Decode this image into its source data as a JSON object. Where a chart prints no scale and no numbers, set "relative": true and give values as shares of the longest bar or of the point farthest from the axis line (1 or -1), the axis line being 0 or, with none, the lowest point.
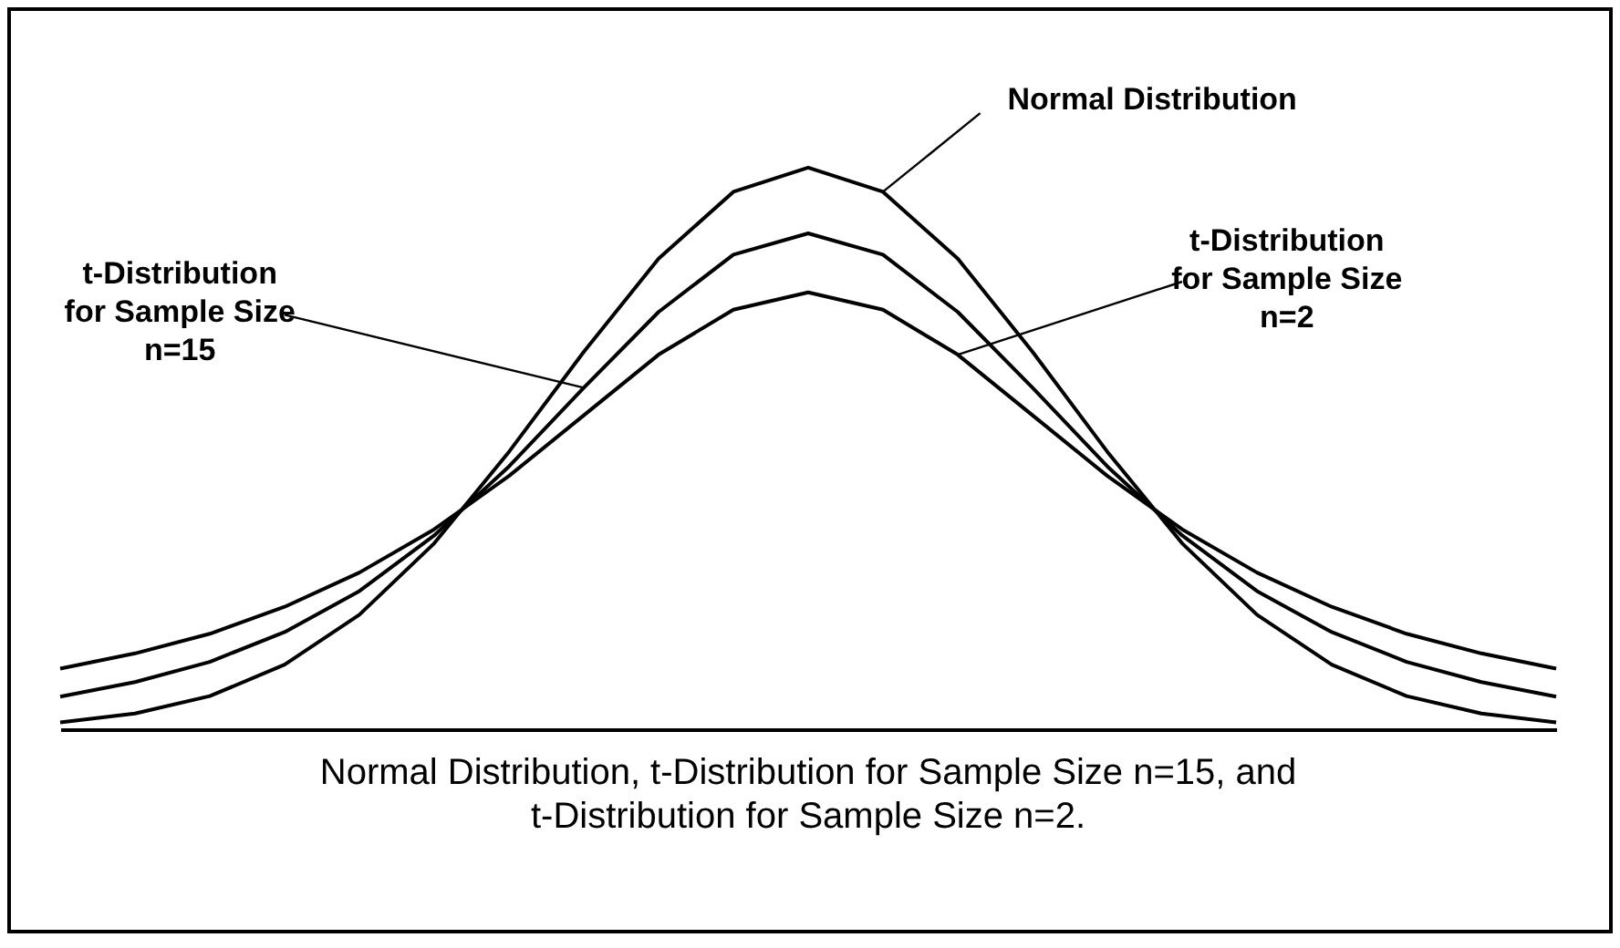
{
  "chart_data": {
    "type": "line",
    "relative": true,
    "marker": "none",
    "line_style": "solid",
    "categories": [
      null,
      null,
      null,
      null,
      null,
      null,
      null,
      null,
      null,
      null,
      null,
      null,
      null,
      null,
      null,
      null,
      null,
      null,
      null,
      null,
      null
    ],
    "series": [
      {
        "color": "#000000",
        "values": [
          0.012,
          0.028,
          0.059,
          0.115,
          0.204,
          0.331,
          0.494,
          0.672,
          0.838,
          0.957,
          1,
          0.957,
          0.838,
          0.672,
          0.494,
          0.331,
          0.204,
          0.115,
          0.059,
          0.028,
          0.012
        ]
      },
      {
        "color": "#000000",
        "values": [
          0.058,
          0.084,
          0.12,
          0.173,
          0.246,
          0.345,
          0.468,
          0.608,
          0.743,
          0.845,
          0.883,
          0.845,
          0.743,
          0.608,
          0.468,
          0.345,
          0.246,
          0.173,
          0.12,
          0.084,
          0.058
        ]
      },
      {
        "color": "#000000",
        "values": [
          0.108,
          0.135,
          0.17,
          0.218,
          0.279,
          0.356,
          0.451,
          0.559,
          0.667,
          0.747,
          0.778,
          0.747,
          0.667,
          0.559,
          0.451,
          0.356,
          0.279,
          0.218,
          0.17,
          0.135,
          0.108
        ]
      }
    ],
    "annotations": [
      "Normal Distribution",
      "t-Distribution\nfor Sample Size\nn=15",
      "t-Distribution\nfor Sample Size\nn=2",
      "Normal Distribution, t-Distribution for Sample Size n=15, and t-Distribution for Sample Size n=2."
    ]
  }
}
